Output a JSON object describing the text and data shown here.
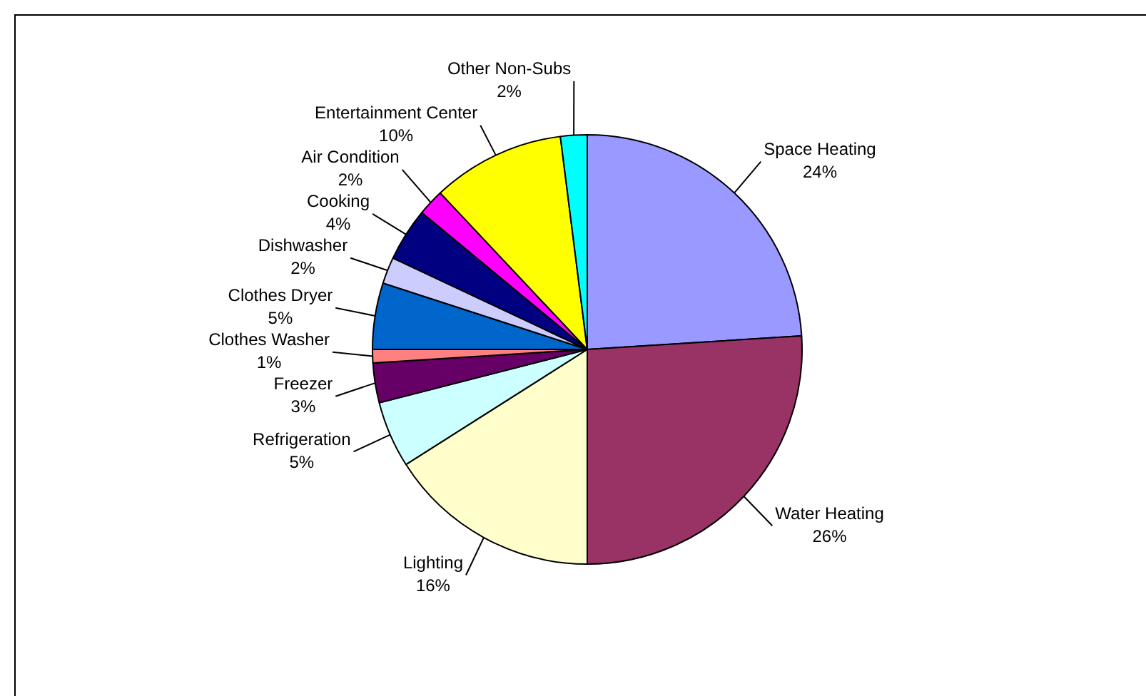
{
  "chart_data": {
    "type": "pie",
    "categories": [
      "Space Heating",
      "Water Heating",
      "Lighting",
      "Refrigeration",
      "Freezer",
      "Clothes Washer",
      "Clothes Dryer",
      "Dishwasher",
      "Cooking",
      "Air Condition",
      "Entertainment Center",
      "Other Non-Subs"
    ],
    "values": [
      24,
      26,
      16,
      5,
      3,
      1,
      5,
      2,
      4,
      2,
      10,
      2
    ],
    "value_labels": [
      "24%",
      "26%",
      "16%",
      "5%",
      "3%",
      "1%",
      "5%",
      "2%",
      "4%",
      "2%",
      "10%",
      "2%"
    ],
    "colors": [
      "#9999ff",
      "#993366",
      "#ffffcc",
      "#ccffff",
      "#660066",
      "#ff8080",
      "#0066cc",
      "#ccccff",
      "#000080",
      "#ff00ff",
      "#ffff00",
      "#00ffff"
    ],
    "legend": false
  }
}
